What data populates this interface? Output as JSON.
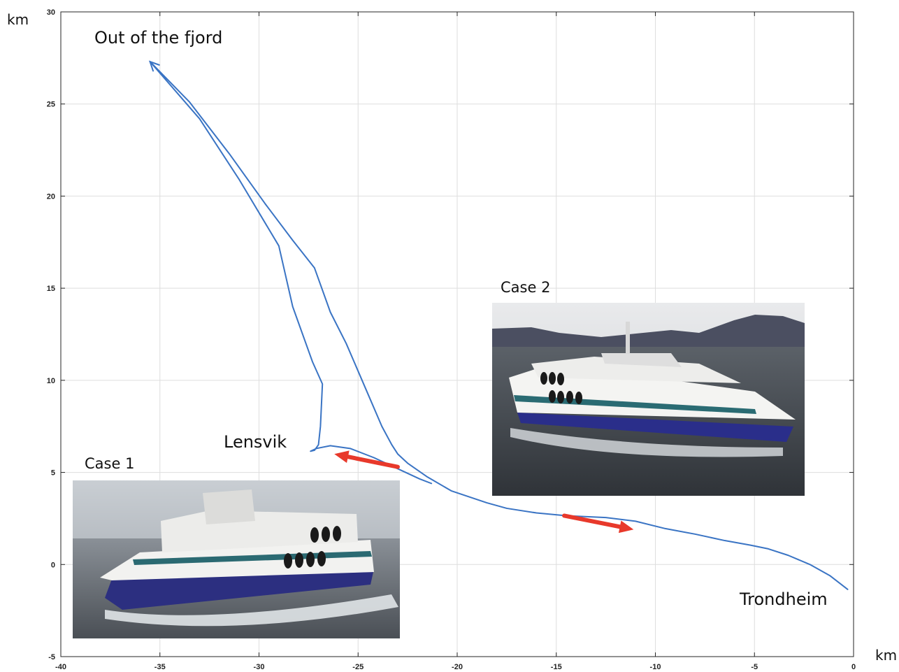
{
  "chart_data": {
    "type": "line",
    "x_unit": "km",
    "y_unit": "km",
    "xlim": [
      -40,
      0
    ],
    "ylim": [
      -5,
      30
    ],
    "x_ticks": [
      "-40",
      "-35",
      "-30",
      "-25",
      "-20",
      "-15",
      "-10",
      "-5",
      "0"
    ],
    "y_ticks": [
      "-5",
      "0",
      "5",
      "10",
      "15",
      "20",
      "25",
      "30"
    ],
    "grid": true,
    "line_color": "#3a74c4",
    "arrow_color": "#e8392b",
    "series": [
      {
        "points": [
          [
            -0.3,
            -1.35
          ],
          [
            -1.2,
            -0.6
          ],
          [
            -2.2,
            0.0
          ],
          [
            -3.3,
            0.5
          ],
          [
            -4.3,
            0.85
          ],
          [
            -5.2,
            1.05
          ],
          [
            -6.5,
            1.3
          ],
          [
            -8.0,
            1.65
          ],
          [
            -9.5,
            1.95
          ],
          [
            -11.0,
            2.35
          ],
          [
            -12.5,
            2.55
          ],
          [
            -14.5,
            2.65
          ],
          [
            -16.0,
            2.8
          ],
          [
            -17.5,
            3.05
          ],
          [
            -18.5,
            3.35
          ],
          [
            -20.3,
            4.0
          ],
          [
            -21.5,
            4.75
          ],
          [
            -22.5,
            5.5
          ],
          [
            -23.0,
            6.0
          ],
          [
            -23.3,
            6.5
          ],
          [
            -23.8,
            7.5
          ],
          [
            -24.4,
            9.0
          ],
          [
            -25.0,
            10.5
          ],
          [
            -25.6,
            12.0
          ],
          [
            -26.4,
            13.7
          ],
          [
            -27.2,
            16.1
          ],
          [
            -28.3,
            17.6
          ],
          [
            -29.7,
            19.6
          ],
          [
            -31.5,
            22.3
          ],
          [
            -33.5,
            25.1
          ],
          [
            -35.5,
            27.3
          ],
          [
            -33.0,
            24.2
          ],
          [
            -31.0,
            20.9
          ],
          [
            -29.0,
            17.3
          ],
          [
            -28.3,
            14.0
          ],
          [
            -27.3,
            11.0
          ],
          [
            -26.8,
            9.8
          ],
          [
            -26.9,
            7.5
          ],
          [
            -27.0,
            6.5
          ],
          [
            -27.2,
            6.2
          ],
          [
            -27.4,
            6.15
          ],
          [
            -27.1,
            6.3
          ],
          [
            -26.4,
            6.45
          ],
          [
            -25.4,
            6.3
          ],
          [
            -24.2,
            5.8
          ],
          [
            -23.0,
            5.2
          ],
          [
            -21.9,
            4.65
          ],
          [
            -21.3,
            4.4
          ]
        ]
      }
    ],
    "arrows": [
      {
        "from": [
          -23.0,
          5.3
        ],
        "to": [
          -26.2,
          6.0
        ]
      },
      {
        "from": [
          -14.6,
          2.65
        ],
        "to": [
          -11.1,
          1.9
        ]
      }
    ],
    "annotations": {
      "out_of_fjord": "Out of the fjord",
      "lensvik": "Lensvik",
      "trondheim": "Trondheim",
      "case1": "Case 1",
      "case2": "Case 2"
    }
  }
}
